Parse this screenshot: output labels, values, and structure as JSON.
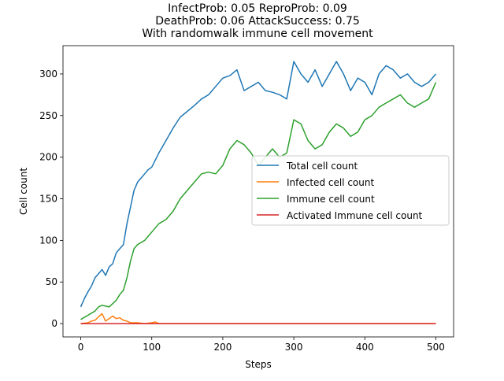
{
  "chart_data": {
    "type": "line",
    "title_lines": [
      "InfectProb: 0.05 ReproProb: 0.09",
      "DeathProb: 0.06 AttackSuccess: 0.75",
      "With randomwalk immune cell movement"
    ],
    "xlabel": "Steps",
    "ylabel": "Cell count",
    "xlim": [
      -25,
      525
    ],
    "ylim": [
      -16,
      334
    ],
    "xticks": [
      0,
      100,
      200,
      300,
      400,
      500
    ],
    "yticks": [
      0,
      50,
      100,
      150,
      200,
      250,
      300
    ],
    "grid": false,
    "legend_position": "center-right",
    "series": [
      {
        "name": "Total cell count",
        "color": "#1f77b4",
        "x": [
          0,
          5,
          10,
          15,
          20,
          25,
          30,
          35,
          40,
          45,
          50,
          55,
          60,
          65,
          70,
          75,
          80,
          85,
          90,
          95,
          100,
          110,
          120,
          130,
          140,
          150,
          160,
          170,
          180,
          190,
          200,
          210,
          220,
          230,
          240,
          250,
          260,
          270,
          280,
          290,
          300,
          310,
          320,
          330,
          340,
          350,
          360,
          370,
          380,
          390,
          400,
          410,
          420,
          430,
          440,
          450,
          460,
          470,
          480,
          490,
          500
        ],
        "values": [
          20,
          30,
          38,
          45,
          55,
          60,
          65,
          58,
          68,
          72,
          85,
          90,
          95,
          120,
          140,
          160,
          170,
          175,
          180,
          185,
          188,
          205,
          220,
          235,
          248,
          255,
          262,
          270,
          275,
          285,
          295,
          298,
          305,
          280,
          285,
          290,
          280,
          278,
          275,
          270,
          315,
          300,
          290,
          305,
          285,
          300,
          315,
          300,
          280,
          295,
          290,
          275,
          300,
          310,
          305,
          295,
          300,
          290,
          285,
          290,
          300
        ]
      },
      {
        "name": "Infected cell count",
        "color": "#ff7f0e",
        "x": [
          0,
          10,
          15,
          20,
          25,
          30,
          35,
          40,
          45,
          50,
          55,
          60,
          65,
          70,
          80,
          90,
          100,
          105,
          110,
          120,
          500
        ],
        "values": [
          0,
          1,
          3,
          4,
          8,
          12,
          3,
          6,
          9,
          6,
          7,
          4,
          3,
          1,
          1,
          0,
          1,
          2,
          0,
          0,
          0
        ]
      },
      {
        "name": "Immune cell count",
        "color": "#2ca02c",
        "x": [
          0,
          10,
          20,
          25,
          30,
          40,
          50,
          55,
          60,
          65,
          70,
          75,
          80,
          90,
          100,
          110,
          120,
          130,
          140,
          150,
          160,
          170,
          180,
          190,
          200,
          210,
          220,
          230,
          240,
          250,
          260,
          270,
          280,
          290,
          300,
          310,
          320,
          330,
          340,
          350,
          360,
          370,
          380,
          390,
          400,
          410,
          420,
          430,
          440,
          450,
          460,
          470,
          480,
          490,
          500
        ],
        "values": [
          5,
          10,
          15,
          20,
          22,
          20,
          28,
          35,
          40,
          55,
          75,
          90,
          95,
          100,
          110,
          120,
          125,
          135,
          150,
          160,
          170,
          180,
          182,
          180,
          190,
          210,
          220,
          215,
          205,
          190,
          200,
          210,
          200,
          205,
          245,
          240,
          220,
          210,
          215,
          230,
          240,
          235,
          225,
          230,
          245,
          250,
          260,
          265,
          270,
          275,
          265,
          260,
          265,
          270,
          290
        ]
      },
      {
        "name": "Activated Immune cell count",
        "color": "#d62728",
        "x": [
          0,
          500
        ],
        "values": [
          0,
          0
        ]
      }
    ]
  }
}
